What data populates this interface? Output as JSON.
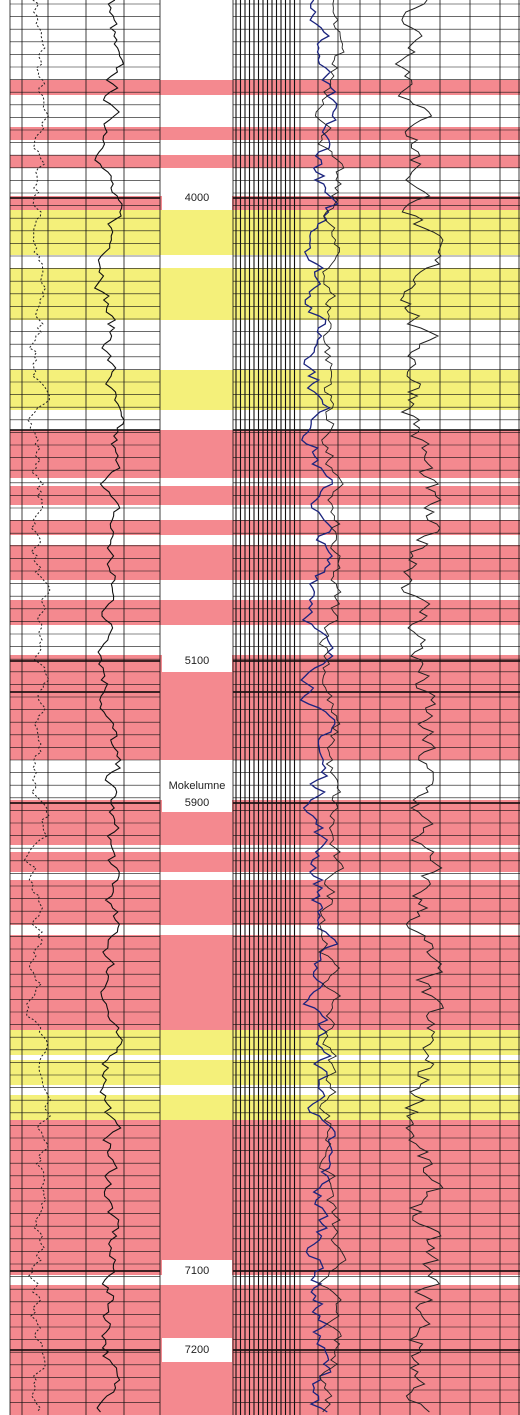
{
  "depth_track": {
    "labels": [
      "4000",
      "5100",
      "Mokelumne",
      "5900",
      "7100",
      "7200"
    ]
  }
}
